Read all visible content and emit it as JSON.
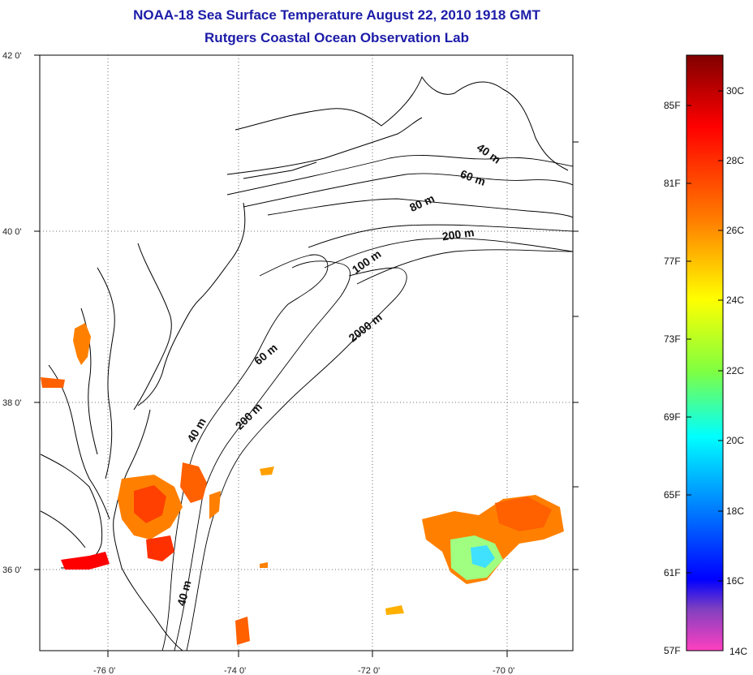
{
  "title": "NOAA-18 Sea Surface Temperature August 22, 2010 1918 GMT",
  "subtitle": "Rutgers Coastal Ocean Observation Lab",
  "map": {
    "lon_range": [
      -77,
      -69
    ],
    "lat_range": [
      35,
      42
    ],
    "lat_labels": [
      "42 0'",
      "40 0'",
      "38 0'",
      "36 0'"
    ],
    "lon_labels": [
      "-76 0'",
      "-74 0'",
      "-72 0'",
      "-70 0'"
    ],
    "grid": "dotted",
    "contour_labels": [
      "40 m",
      "60 m",
      "80 m",
      "200 m",
      "100 m",
      "2000 m",
      "60 m",
      "200 m",
      "40 m",
      "40 m"
    ]
  },
  "colorbar": {
    "fahrenheit_labels": [
      "85F",
      "81F",
      "77F",
      "73F",
      "69F",
      "65F",
      "61F",
      "57F"
    ],
    "celsius_labels": [
      "30C",
      "28C",
      "26C",
      "24C",
      "22C",
      "20C",
      "18C",
      "16C",
      "14C"
    ],
    "colors": [
      "#800000",
      "#ff0000",
      "#ff8000",
      "#ffff00",
      "#80ff40",
      "#00ffff",
      "#0080ff",
      "#0000ff",
      "#8040c0",
      "#ff40c0"
    ]
  }
}
